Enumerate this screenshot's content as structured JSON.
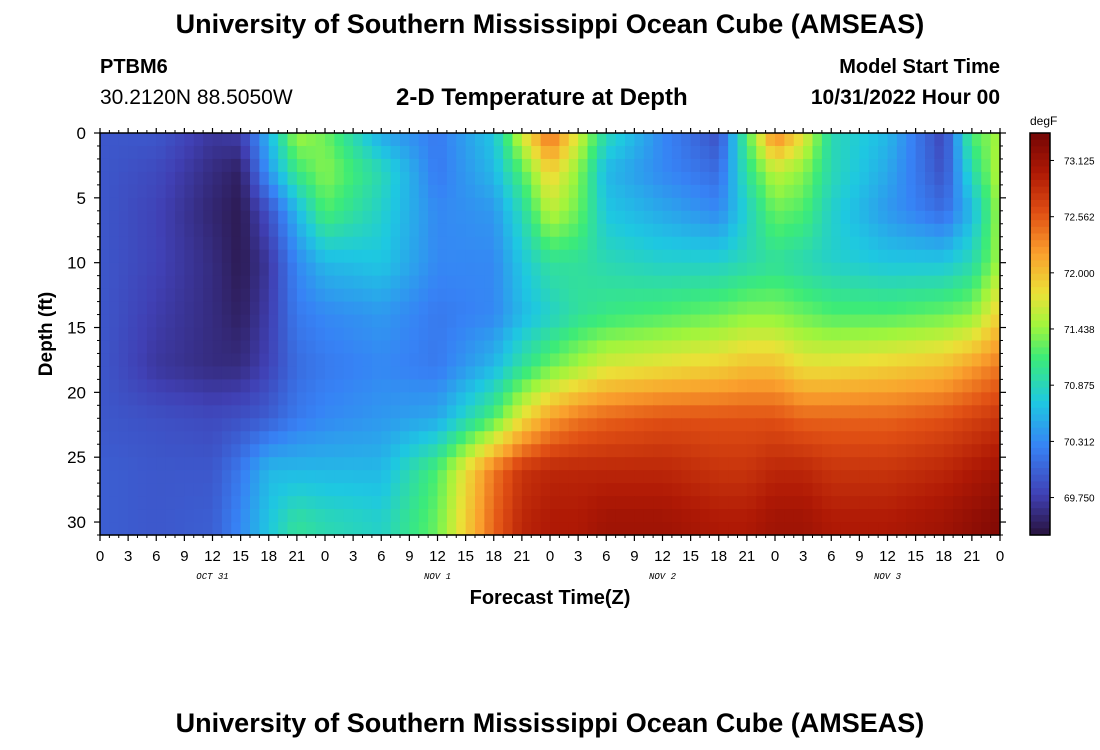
{
  "header": {
    "title": "University of Southern Mississippi Ocean Cube (AMSEAS)",
    "station": "PTBM6",
    "coordinates": "30.2120N  88.5050W",
    "subtitle": "2-D Temperature at Depth",
    "model_start_label": "Model Start Time",
    "model_start_value": "10/31/2022 Hour 00"
  },
  "footer": {
    "title": "University of Southern Mississippi Ocean Cube (AMSEAS)"
  },
  "chart_data": {
    "type": "heatmap",
    "title": "2-D Temperature at Depth",
    "xlabel": "Forecast Time(Z)",
    "ylabel": "Depth (ft)",
    "x_tick_labels": [
      "0",
      "3",
      "6",
      "9",
      "12",
      "15",
      "18",
      "21",
      "0",
      "3",
      "6",
      "9",
      "12",
      "15",
      "18",
      "21",
      "0",
      "3",
      "6",
      "9",
      "12",
      "15",
      "18",
      "21",
      "0",
      "3",
      "6",
      "9",
      "12",
      "15",
      "18",
      "21",
      "0"
    ],
    "date_labels": [
      "OCT 31",
      "NOV 1",
      "NOV 2",
      "NOV 3"
    ],
    "xlim_hours": [
      0,
      96
    ],
    "y_ticks": [
      0,
      5,
      10,
      15,
      20,
      25,
      30
    ],
    "ylim": [
      0,
      31
    ],
    "colorbar": {
      "unit": "degF",
      "ticks": [
        "73.125",
        "72.562",
        "72.000",
        "71.438",
        "70.875",
        "70.312",
        "69.750"
      ],
      "range": [
        69.375,
        73.4
      ]
    },
    "depths_ft": [
      0,
      3,
      6,
      10,
      14,
      18,
      22,
      26,
      30
    ],
    "hours": [
      0,
      6,
      12,
      15,
      18,
      21,
      24,
      30,
      36,
      42,
      45,
      48,
      51,
      54,
      60,
      66,
      69,
      72,
      75,
      78,
      84,
      90,
      93,
      96
    ],
    "temperature_degF": [
      [
        69.95,
        69.95,
        69.7,
        69.75,
        70.6,
        71.5,
        71.3,
        70.5,
        70.2,
        70.7,
        71.7,
        72.5,
        71.7,
        70.9,
        70.3,
        69.9,
        71.2,
        72.4,
        71.8,
        70.9,
        70.6,
        69.8,
        71.2,
        71.5
      ],
      [
        69.95,
        69.85,
        69.6,
        69.5,
        70.4,
        71.1,
        71.4,
        70.9,
        70.2,
        70.6,
        71.2,
        71.9,
        71.4,
        70.6,
        70.3,
        70.1,
        71.0,
        71.6,
        71.4,
        70.9,
        70.5,
        69.9,
        70.9,
        71.6
      ],
      [
        69.95,
        69.8,
        69.55,
        69.45,
        69.9,
        70.6,
        71.2,
        70.8,
        70.3,
        70.4,
        70.9,
        71.6,
        71.3,
        70.7,
        70.5,
        70.3,
        70.8,
        71.3,
        71.2,
        70.8,
        70.4,
        70.1,
        70.6,
        71.5
      ],
      [
        69.95,
        69.8,
        69.6,
        69.45,
        69.7,
        70.3,
        70.6,
        70.7,
        70.3,
        70.3,
        70.7,
        71.0,
        71.0,
        70.9,
        70.8,
        70.8,
        70.9,
        71.0,
        70.9,
        70.8,
        70.7,
        70.7,
        70.9,
        71.5
      ],
      [
        69.95,
        69.75,
        69.6,
        69.5,
        69.75,
        70.2,
        70.3,
        70.4,
        70.2,
        70.3,
        70.6,
        70.8,
        71.0,
        71.1,
        71.2,
        71.3,
        71.4,
        71.4,
        71.3,
        71.2,
        71.2,
        71.3,
        71.4,
        71.9
      ],
      [
        69.95,
        69.7,
        69.6,
        69.6,
        69.8,
        70.1,
        70.2,
        70.3,
        70.2,
        70.6,
        71.0,
        71.3,
        71.5,
        71.7,
        71.8,
        71.9,
        72.0,
        72.0,
        71.8,
        71.8,
        71.9,
        72.0,
        72.2,
        72.4
      ],
      [
        69.95,
        69.9,
        69.85,
        69.9,
        70.0,
        70.2,
        70.3,
        70.4,
        70.5,
        71.2,
        71.8,
        72.2,
        72.4,
        72.5,
        72.6,
        72.6,
        72.6,
        72.6,
        72.5,
        72.5,
        72.5,
        72.6,
        72.7,
        72.8
      ],
      [
        70.0,
        69.95,
        69.95,
        70.2,
        70.6,
        70.6,
        70.6,
        70.6,
        71.2,
        72.4,
        72.8,
        72.9,
        72.9,
        72.9,
        72.9,
        72.8,
        72.8,
        72.9,
        72.9,
        72.8,
        72.8,
        72.9,
        73.0,
        73.1
      ],
      [
        70.0,
        69.95,
        70.0,
        70.3,
        70.7,
        71.0,
        70.9,
        70.8,
        71.3,
        72.5,
        72.9,
        73.0,
        73.0,
        73.1,
        73.1,
        73.0,
        73.0,
        73.1,
        73.1,
        73.0,
        73.0,
        73.1,
        73.2,
        73.3
      ]
    ]
  }
}
